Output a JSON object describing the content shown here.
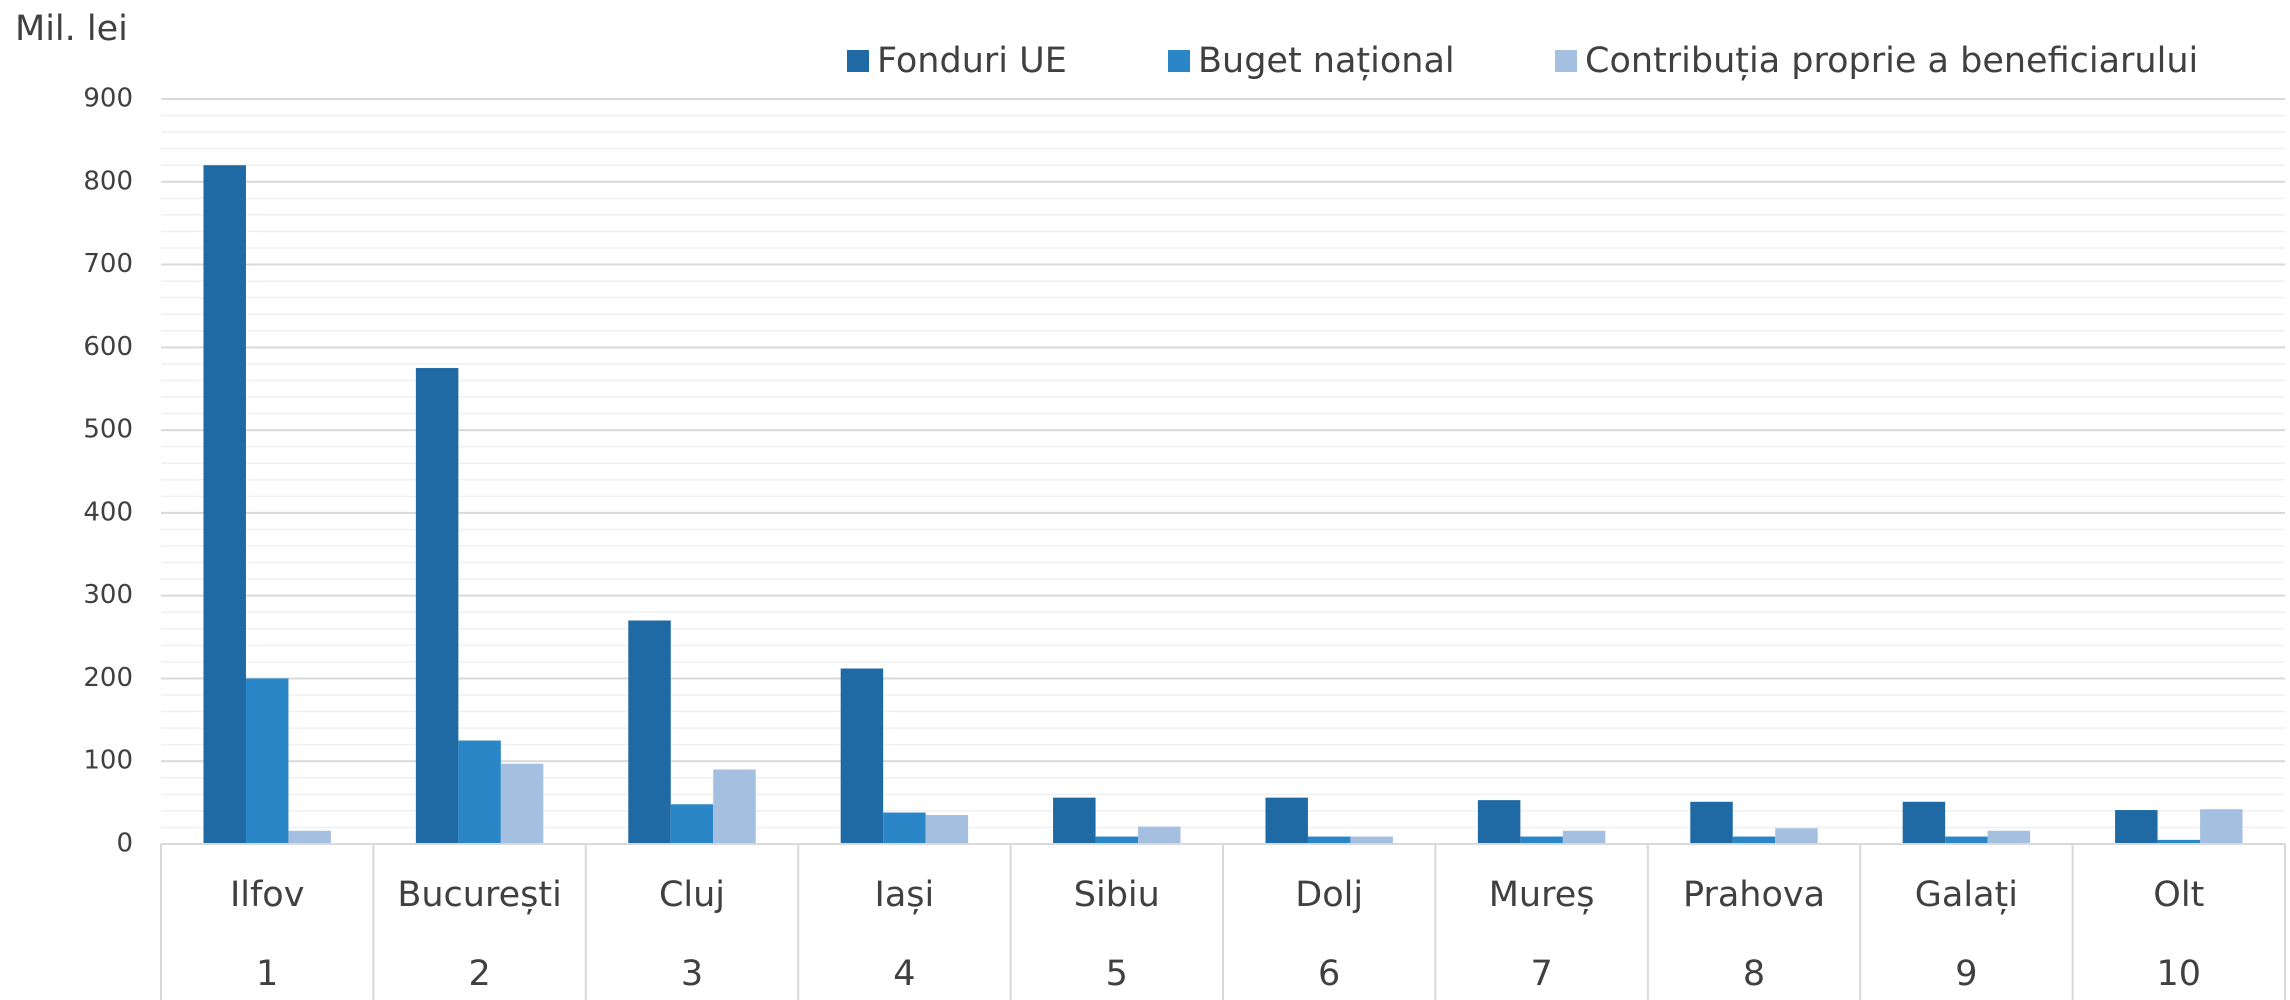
{
  "chart_data": {
    "type": "bar",
    "y_axis_label": "Mil. lei",
    "categories": [
      "Ilfov",
      "București",
      "Cluj",
      "Iași",
      "Sibiu",
      "Dolj",
      "Mureș",
      "Prahova",
      "Galați",
      "Olt"
    ],
    "category_numbers": [
      1,
      2,
      3,
      4,
      5,
      6,
      7,
      8,
      9,
      10
    ],
    "series": [
      {
        "name": "Fonduri UE",
        "color": "#1f6aa5",
        "values": [
          820,
          575,
          270,
          212,
          56,
          56,
          53,
          51,
          51,
          41
        ]
      },
      {
        "name": "Buget național",
        "color": "#2b86c8",
        "values": [
          200,
          125,
          48,
          38,
          9,
          9,
          9,
          9,
          9,
          5
        ]
      },
      {
        "name": "Contribuția proprie a beneficiarului",
        "color": "#a5bfe0",
        "values": [
          16,
          97,
          90,
          35,
          21,
          9,
          16,
          19,
          16,
          42
        ]
      }
    ],
    "ylim": [
      0,
      900
    ],
    "yticks": [
      0,
      100,
      200,
      300,
      400,
      500,
      600,
      700,
      800,
      900
    ],
    "grid": true,
    "minor_grid": true,
    "legend": "top"
  }
}
